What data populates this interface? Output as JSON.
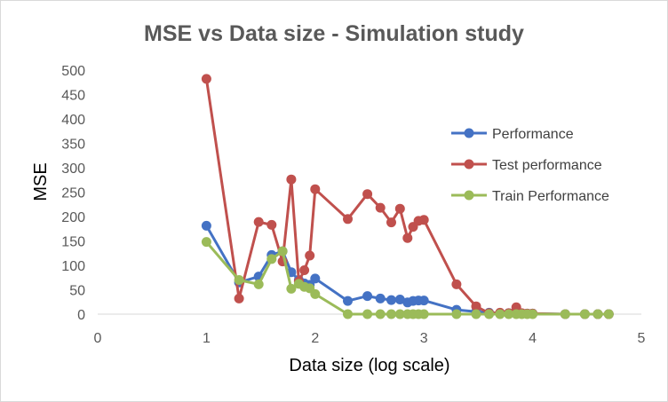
{
  "chart_data": {
    "type": "line",
    "title": "MSE vs Data size - Simulation study",
    "xlabel": "Data size (log scale)",
    "ylabel": "MSE",
    "xlim": [
      0,
      5
    ],
    "ylim": [
      0,
      500
    ],
    "xticks": [
      "0",
      "1",
      "2",
      "3",
      "4",
      "5"
    ],
    "yticks": [
      "0",
      "50",
      "100",
      "150",
      "200",
      "250",
      "300",
      "350",
      "400",
      "450",
      "500"
    ],
    "legend_position": "right",
    "series": [
      {
        "name": "Performance",
        "color": "#4472c4",
        "points": [
          [
            1,
            181
          ],
          [
            1.3,
            65
          ],
          [
            1.48,
            77
          ],
          [
            1.6,
            121
          ],
          [
            1.7,
            129
          ],
          [
            1.78,
            86
          ],
          [
            1.85,
            70
          ],
          [
            1.9,
            63
          ],
          [
            1.95,
            60
          ],
          [
            2.0,
            73
          ],
          [
            2.3,
            27
          ],
          [
            2.48,
            37
          ],
          [
            2.6,
            32
          ],
          [
            2.7,
            29
          ],
          [
            2.78,
            30
          ],
          [
            2.85,
            24
          ],
          [
            2.9,
            27
          ],
          [
            2.95,
            28
          ],
          [
            3.0,
            28
          ],
          [
            3.3,
            9
          ],
          [
            3.48,
            5
          ],
          [
            3.6,
            3
          ],
          [
            3.7,
            2
          ],
          [
            3.78,
            2
          ],
          [
            3.85,
            1
          ],
          [
            3.9,
            1
          ],
          [
            3.95,
            1
          ],
          [
            4.0,
            1
          ],
          [
            4.3,
            0
          ],
          [
            4.48,
            0
          ],
          [
            4.6,
            0
          ],
          [
            4.7,
            0
          ]
        ]
      },
      {
        "name": "Test performance",
        "color": "#c0504d",
        "points": [
          [
            1,
            482
          ],
          [
            1.3,
            32
          ],
          [
            1.48,
            189
          ],
          [
            1.6,
            183
          ],
          [
            1.7,
            108
          ],
          [
            1.78,
            276
          ],
          [
            1.85,
            67
          ],
          [
            1.9,
            90
          ],
          [
            1.95,
            120
          ],
          [
            2.0,
            256
          ],
          [
            2.3,
            195
          ],
          [
            2.48,
            246
          ],
          [
            2.6,
            218
          ],
          [
            2.7,
            188
          ],
          [
            2.78,
            216
          ],
          [
            2.85,
            156
          ],
          [
            2.9,
            179
          ],
          [
            2.95,
            191
          ],
          [
            3.0,
            193
          ],
          [
            3.3,
            61
          ],
          [
            3.48,
            16
          ],
          [
            3.6,
            2
          ],
          [
            3.7,
            3
          ],
          [
            3.78,
            2
          ],
          [
            3.85,
            14
          ],
          [
            3.9,
            2
          ],
          [
            3.95,
            1
          ],
          [
            4.0,
            1
          ],
          [
            4.3,
            0
          ],
          [
            4.48,
            0
          ],
          [
            4.6,
            0
          ],
          [
            4.7,
            0
          ]
        ]
      },
      {
        "name": "Train Performance",
        "color": "#9bbb59",
        "points": [
          [
            1,
            148
          ],
          [
            1.3,
            70
          ],
          [
            1.48,
            61
          ],
          [
            1.6,
            113
          ],
          [
            1.7,
            129
          ],
          [
            1.78,
            52
          ],
          [
            1.85,
            62
          ],
          [
            1.9,
            56
          ],
          [
            1.95,
            53
          ],
          [
            2.0,
            41
          ],
          [
            2.3,
            0
          ],
          [
            2.48,
            0
          ],
          [
            2.6,
            0
          ],
          [
            2.7,
            0
          ],
          [
            2.78,
            0
          ],
          [
            2.85,
            0
          ],
          [
            2.9,
            0
          ],
          [
            2.95,
            0
          ],
          [
            3.0,
            0
          ],
          [
            3.3,
            0
          ],
          [
            3.48,
            0
          ],
          [
            3.6,
            0
          ],
          [
            3.7,
            0
          ],
          [
            3.78,
            0
          ],
          [
            3.85,
            0
          ],
          [
            3.9,
            0
          ],
          [
            3.95,
            0
          ],
          [
            4.0,
            0
          ],
          [
            4.3,
            0
          ],
          [
            4.48,
            0
          ],
          [
            4.6,
            0
          ],
          [
            4.7,
            0
          ]
        ]
      }
    ]
  }
}
